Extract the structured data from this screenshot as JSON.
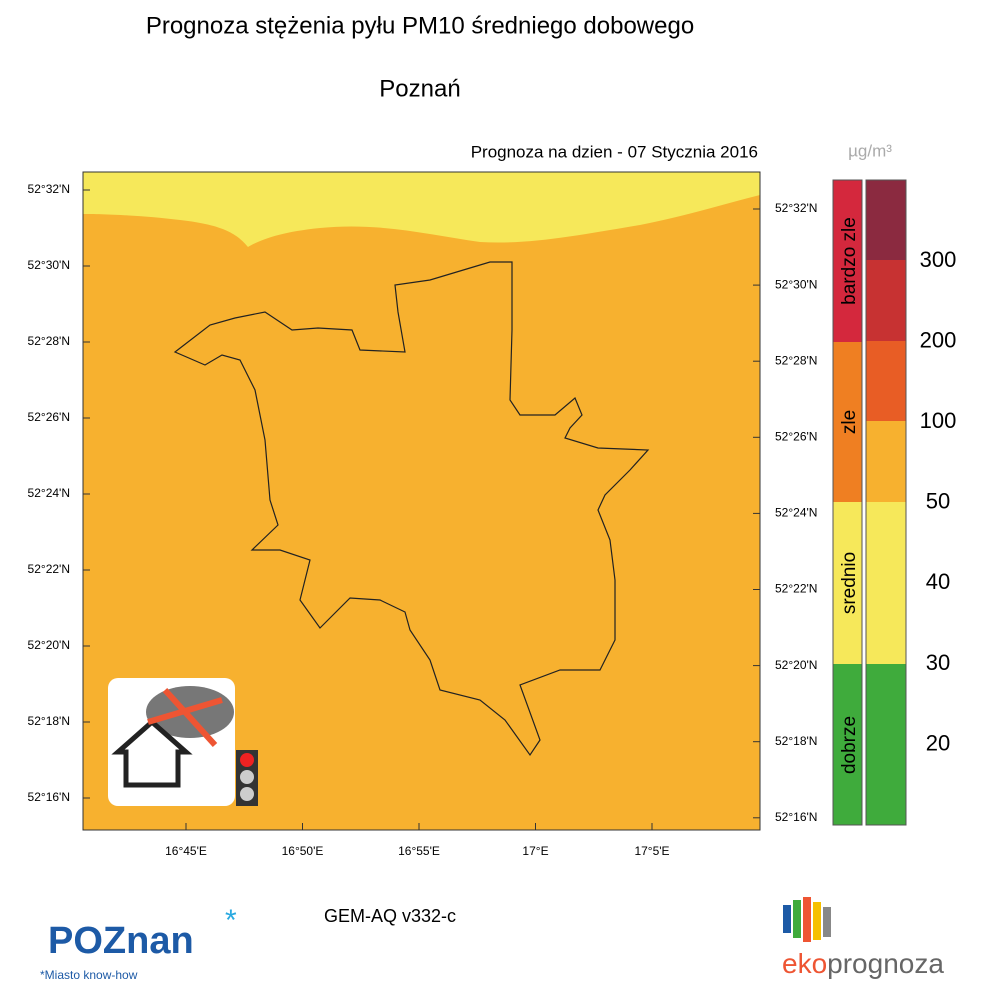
{
  "header": {
    "title": "Prognoza stężenia pyłu PM10 średniego dobowego",
    "subtitle": "Poznań",
    "date": "Prognoza na dzien -  07 Stycznia 2016",
    "unit": "µg/m³"
  },
  "map": {
    "lat_labels_left": [
      "52°32'N",
      "52°30'N",
      "52°28'N",
      "52°26'N",
      "52°24'N",
      "52°22'N",
      "52°20'N",
      "52°18'N",
      "52°16'N"
    ],
    "lat_labels_right": [
      "52°32'N",
      "52°30'N",
      "52°28'N",
      "52°26'N",
      "52°24'N",
      "52°22'N",
      "52°20'N",
      "52°18'N",
      "52°16'N"
    ],
    "lon_labels": [
      "16°45'E",
      "16°50'E",
      "16°55'E",
      "17°E",
      "17°5'E"
    ]
  },
  "legend": {
    "categories": [
      "bardzo zle",
      "zle",
      "srednio",
      "dobrze"
    ],
    "scale_labels": [
      "300",
      "200",
      "100",
      "50",
      "40",
      "30",
      "20"
    ]
  },
  "footer": {
    "model": "GEM-AQ v332-c",
    "left_logo": "POZnan",
    "left_tagline": "*Miasto know-how",
    "right_logo_a": "eko",
    "right_logo_b": "prognoza"
  }
}
